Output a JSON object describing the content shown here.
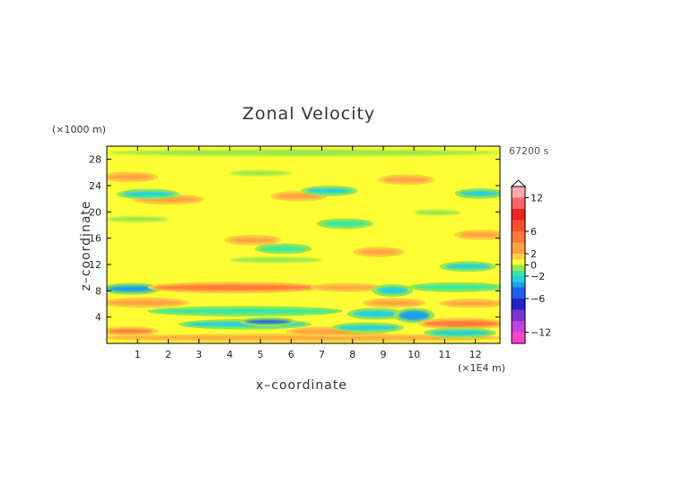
{
  "chart_data": {
    "type": "heatmap",
    "title": "Zonal Velocity",
    "xlabel": "x–coordinate",
    "ylabel": "z–coordinate",
    "x_unit": "(×1E4 m)",
    "y_unit": "(×1000 m)",
    "time_label": "67200 s",
    "xlim": [
      0,
      12.8
    ],
    "ylim": [
      0,
      30
    ],
    "x_ticks": [
      1,
      2,
      3,
      4,
      5,
      6,
      7,
      8,
      9,
      10,
      11,
      12
    ],
    "x_tick_labels": [
      "1",
      "2",
      "3",
      "4",
      "5",
      "6",
      "7",
      "8",
      "9",
      "10",
      "11",
      "12"
    ],
    "y_ticks": [
      4,
      8,
      12,
      16,
      20,
      24,
      28
    ],
    "y_tick_labels": [
      "4",
      "8",
      "12",
      "16",
      "20",
      "24",
      "28"
    ],
    "colorbar": {
      "range": [
        -14,
        14
      ],
      "tick_values": [
        12,
        6,
        2,
        0,
        -2,
        -6,
        -12
      ],
      "tick_labels": [
        "12",
        "6",
        "2",
        "0",
        "−2",
        "−6",
        "−12"
      ],
      "levels": [
        {
          "from": -14,
          "to": -12,
          "color": "#ff44c8"
        },
        {
          "from": -12,
          "to": -10,
          "color": "#c040e0"
        },
        {
          "from": -10,
          "to": -8,
          "color": "#7a32d0"
        },
        {
          "from": -8,
          "to": -6,
          "color": "#2222cc"
        },
        {
          "from": -6,
          "to": -4,
          "color": "#1a60ee"
        },
        {
          "from": -4,
          "to": -3,
          "color": "#1aa0f0"
        },
        {
          "from": -3,
          "to": -2,
          "color": "#22d0e0"
        },
        {
          "from": -2,
          "to": -1,
          "color": "#33e8a8"
        },
        {
          "from": -1,
          "to": 0,
          "color": "#99e84a"
        },
        {
          "from": 0,
          "to": 1,
          "color": "#ffff33"
        },
        {
          "from": 1,
          "to": 2,
          "color": "#ffd040"
        },
        {
          "from": 2,
          "to": 4,
          "color": "#ffa040"
        },
        {
          "from": 4,
          "to": 6,
          "color": "#ff7a3a"
        },
        {
          "from": 6,
          "to": 8,
          "color": "#ff4a30"
        },
        {
          "from": 8,
          "to": 10,
          "color": "#ee2222"
        },
        {
          "from": 10,
          "to": 12,
          "color": "#ff6464"
        },
        {
          "from": 12,
          "to": 14,
          "color": "#ffaaaa"
        }
      ]
    },
    "features": [
      {
        "x": [
          0,
          12.8
        ],
        "z": [
          0.6,
          1.1
        ],
        "value": 3
      },
      {
        "x": [
          0,
          1.5
        ],
        "z": [
          1.5,
          2.2
        ],
        "value": 4
      },
      {
        "x": [
          6,
          9
        ],
        "z": [
          1.4,
          2.2
        ],
        "value": 3
      },
      {
        "x": [
          2.5,
          6.5
        ],
        "z": [
          2.5,
          3.3
        ],
        "value": -3
      },
      {
        "x": [
          4.5,
          6
        ],
        "z": [
          3.0,
          3.6
        ],
        "value": -5
      },
      {
        "x": [
          7.5,
          9.5
        ],
        "z": [
          2.0,
          2.8
        ],
        "value": -2.5
      },
      {
        "x": [
          1.5,
          7.5
        ],
        "z": [
          4.5,
          5.3
        ],
        "value": -1.5
      },
      {
        "x": [
          0,
          2.5
        ],
        "z": [
          5.8,
          6.6
        ],
        "value": 3
      },
      {
        "x": [
          8,
          9.5
        ],
        "z": [
          4.0,
          5.0
        ],
        "value": -3
      },
      {
        "x": [
          8.5,
          10.2
        ],
        "z": [
          5.8,
          6.5
        ],
        "value": 3.5
      },
      {
        "x": [
          9.5,
          10.5
        ],
        "z": [
          3.5,
          5.0
        ],
        "value": -4
      },
      {
        "x": [
          10.3,
          12.8
        ],
        "z": [
          2.5,
          3.5
        ],
        "value": 4
      },
      {
        "x": [
          10.5,
          12.5
        ],
        "z": [
          1.2,
          2.0
        ],
        "value": -3
      },
      {
        "x": [
          11,
          12.8
        ],
        "z": [
          5.8,
          6.4
        ],
        "value": 2.5
      },
      {
        "x": [
          0,
          1.6
        ],
        "z": [
          7.8,
          8.8
        ],
        "value": -4
      },
      {
        "x": [
          1.5,
          6.8
        ],
        "z": [
          8.0,
          9.0
        ],
        "value": 4
      },
      {
        "x": [
          6.8,
          8.8
        ],
        "z": [
          8.2,
          8.8
        ],
        "value": 2.5
      },
      {
        "x": [
          8.8,
          9.8
        ],
        "z": [
          7.5,
          8.6
        ],
        "value": -3
      },
      {
        "x": [
          10,
          12.8
        ],
        "z": [
          8.2,
          8.9
        ],
        "value": -1.5
      },
      {
        "x": [
          11,
          12.5
        ],
        "z": [
          11.3,
          12.1
        ],
        "value": -2.5
      },
      {
        "x": [
          4,
          7
        ],
        "z": [
          12.3,
          13.1
        ],
        "value": -1
      },
      {
        "x": [
          5,
          6.5
        ],
        "z": [
          14.0,
          14.8
        ],
        "value": -1.5
      },
      {
        "x": [
          8.2,
          9.5
        ],
        "z": [
          13.5,
          14.3
        ],
        "value": 2.5
      },
      {
        "x": [
          4,
          5.5
        ],
        "z": [
          15.3,
          16.1
        ],
        "value": 2
      },
      {
        "x": [
          11.5,
          12.8
        ],
        "z": [
          16.1,
          16.9
        ],
        "value": 3
      },
      {
        "x": [
          0,
          2
        ],
        "z": [
          18.5,
          19.3
        ],
        "value": -1
      },
      {
        "x": [
          7,
          8.5
        ],
        "z": [
          17.8,
          18.6
        ],
        "value": -1.5
      },
      {
        "x": [
          10,
          11.5
        ],
        "z": [
          19.5,
          20.3
        ],
        "value": -1
      },
      {
        "x": [
          1,
          3
        ],
        "z": [
          21.5,
          22.3
        ],
        "value": 2
      },
      {
        "x": [
          5.5,
          7
        ],
        "z": [
          22.0,
          22.8
        ],
        "value": 3
      },
      {
        "x": [
          0.5,
          2.2
        ],
        "z": [
          22.3,
          23.1
        ],
        "value": -3
      },
      {
        "x": [
          6.5,
          8
        ],
        "z": [
          22.8,
          23.6
        ],
        "value": -3
      },
      {
        "x": [
          11.5,
          12.8
        ],
        "z": [
          22.4,
          23.2
        ],
        "value": -3
      },
      {
        "x": [
          0,
          1.5
        ],
        "z": [
          24.9,
          25.7
        ],
        "value": 3
      },
      {
        "x": [
          9,
          10.5
        ],
        "z": [
          24.5,
          25.3
        ],
        "value": 2
      },
      {
        "x": [
          4,
          6
        ],
        "z": [
          25.5,
          26.3
        ],
        "value": -1
      },
      {
        "x": [
          0,
          12.8
        ],
        "z": [
          28.5,
          29.5
        ],
        "value": -0.5
      }
    ]
  }
}
